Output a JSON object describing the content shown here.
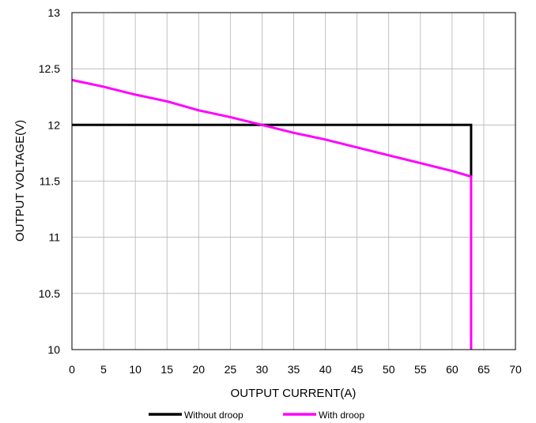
{
  "chart_data": {
    "type": "line",
    "xlabel": "OUTPUT CURRENT(A)",
    "ylabel": "OUTPUT VOLTAGE(V)",
    "xlim": [
      0,
      70
    ],
    "ylim": [
      10,
      13
    ],
    "xticks": [
      0,
      5,
      10,
      15,
      20,
      25,
      30,
      35,
      40,
      45,
      50,
      55,
      60,
      65,
      70
    ],
    "yticks": [
      10,
      10.5,
      11,
      11.5,
      12,
      12.5,
      13
    ],
    "ytick_labels": [
      "10",
      "10.5",
      "11",
      "11.5",
      "12",
      "12.5",
      "13"
    ],
    "grid": true,
    "legend_position": "bottom",
    "series": [
      {
        "name": "Without droop",
        "color": "#000000",
        "x": [
          0,
          63,
          63
        ],
        "y": [
          12,
          12,
          11.54
        ]
      },
      {
        "name": "With droop",
        "color": "#ff00ff",
        "x": [
          0,
          5,
          10,
          15,
          20,
          25,
          30,
          35,
          40,
          45,
          50,
          55,
          60,
          63,
          63
        ],
        "y": [
          12.4,
          12.34,
          12.27,
          12.21,
          12.13,
          12.07,
          12.0,
          11.93,
          11.87,
          11.8,
          11.73,
          11.66,
          11.59,
          11.54,
          10
        ]
      }
    ]
  }
}
